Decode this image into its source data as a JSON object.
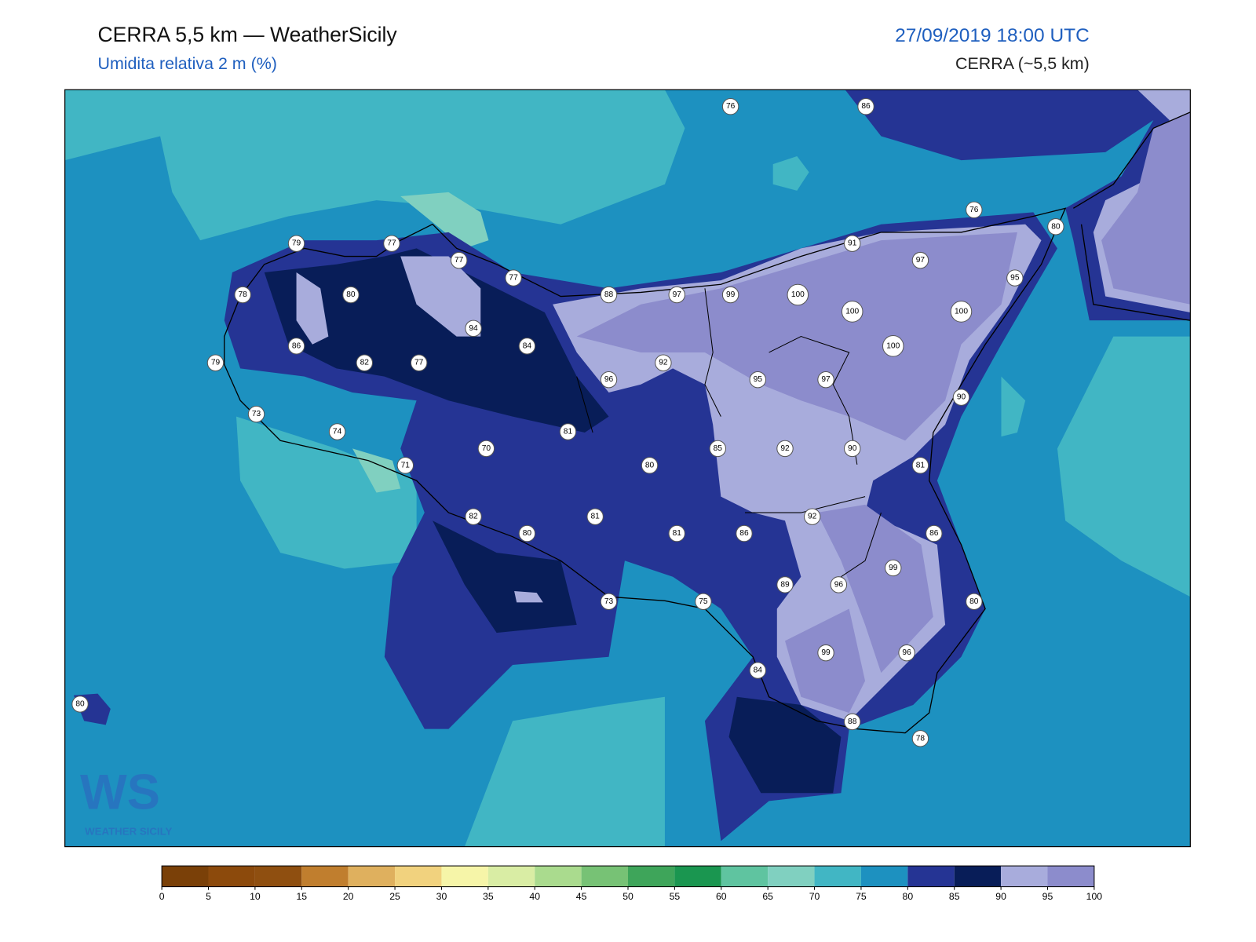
{
  "header": {
    "title": "CERRA 5,5 km — WeatherSicily",
    "subtitle": "Umidita relativa 2 m (%)",
    "datetime": "27/09/2019 18:00 UTC",
    "model": "CERRA (~5,5 km)"
  },
  "map": {
    "stations": [
      76,
      86,
      76,
      80,
      91,
      97,
      95,
      79,
      77,
      77,
      77,
      78,
      80,
      88,
      97,
      99,
      100,
      100,
      100,
      94,
      84,
      86,
      100,
      79,
      82,
      77,
      92,
      96,
      95,
      97,
      90,
      73,
      74,
      81,
      70,
      85,
      92,
      90,
      71,
      80,
      81,
      82,
      92,
      81,
      80,
      81,
      86,
      86,
      99,
      89,
      96,
      73,
      75,
      80,
      99,
      96,
      84,
      88,
      78,
      80
    ]
  },
  "colorbar": {
    "ticks": [
      0,
      5,
      10,
      15,
      20,
      25,
      30,
      35,
      40,
      45,
      50,
      55,
      60,
      65,
      70,
      75,
      80,
      85,
      90,
      95,
      100
    ],
    "colors": [
      "#7a4008",
      "#8c4a0c",
      "#8f4f10",
      "#c07e2e",
      "#dfb05e",
      "#f1d27e",
      "#f6f5a8",
      "#d9eda4",
      "#aadb8e",
      "#77c275",
      "#3ea55a",
      "#1a9650",
      "#5fc4a0",
      "#80d0c0",
      "#41b6c4",
      "#1d91c0",
      "#253494",
      "#081d58",
      "#a8acdc",
      "#8c8ccc"
    ]
  },
  "logo": {
    "mark": "WS",
    "text": "WEATHER SICILY"
  }
}
